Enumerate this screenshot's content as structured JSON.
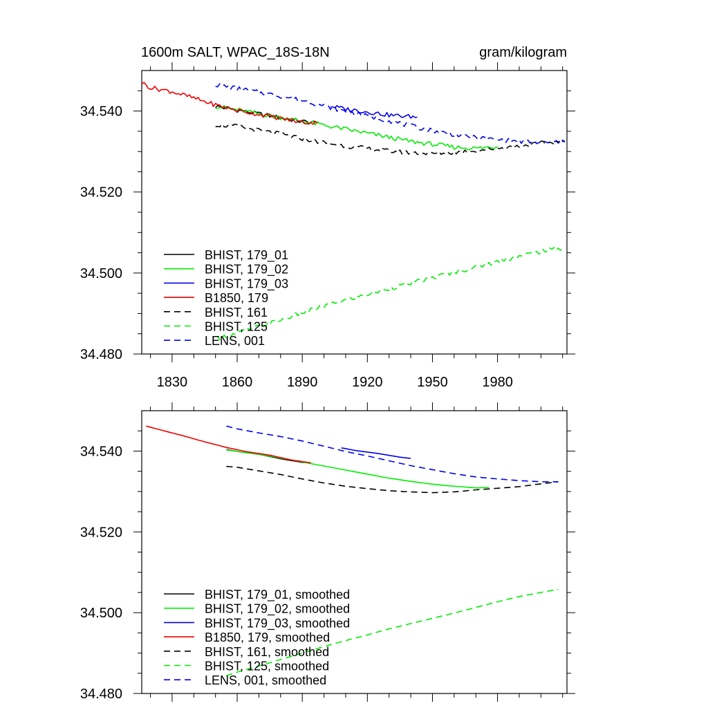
{
  "header": {
    "title_left": "1600m SALT, WPAC_18S-18N",
    "title_right": "gram/kilogram"
  },
  "colors": {
    "black": "#000000",
    "green": "#00ee00",
    "blue": "#0000ee",
    "red": "#ee0000"
  },
  "chart_data": [
    {
      "type": "line",
      "xlim": [
        1816,
        2012
      ],
      "ylim": [
        34.48,
        34.55
      ],
      "xticks": [
        "1830",
        "1860",
        "1890",
        "1920",
        "1950",
        "1980"
      ],
      "yticks": [
        "34.480",
        "34.500",
        "34.520",
        "34.540"
      ],
      "legend_position": "lower-left",
      "grid": false,
      "series": [
        {
          "name": "BHIST, 179_01",
          "color": "#000000",
          "dash": "solid",
          "x": [
            1850,
            1860,
            1870,
            1880,
            1890,
            1897
          ],
          "y": [
            34.5412,
            34.5402,
            34.5393,
            34.5383,
            34.5374,
            34.5371
          ]
        },
        {
          "name": "BHIST, 179_02",
          "color": "#00ee00",
          "dash": "solid",
          "x": [
            1850,
            1860,
            1870,
            1880,
            1890,
            1900,
            1910,
            1920,
            1930,
            1940,
            1950,
            1960,
            1970,
            1980
          ],
          "y": [
            34.5412,
            34.5403,
            34.5393,
            34.5384,
            34.5375,
            34.5365,
            34.5355,
            34.5345,
            34.5335,
            34.5325,
            34.5318,
            34.5311,
            34.5308,
            34.5312
          ]
        },
        {
          "name": "BHIST, 179_03",
          "color": "#0000ee",
          "dash": "solid",
          "x": [
            1903,
            1910,
            1920,
            1930,
            1943
          ],
          "y": [
            34.5412,
            34.5405,
            34.5398,
            34.539,
            34.5385
          ]
        },
        {
          "name": "B1850, 179",
          "color": "#ee0000",
          "dash": "solid",
          "x": [
            1816,
            1820,
            1830,
            1840,
            1850,
            1860,
            1870,
            1880,
            1890,
            1897
          ],
          "y": [
            34.547,
            34.5458,
            34.5448,
            34.5432,
            34.5415,
            34.5402,
            34.5392,
            34.5382,
            34.5372,
            34.537
          ]
        },
        {
          "name": "BHIST, 161",
          "color": "#000000",
          "dash": "dashed",
          "x": [
            1850,
            1860,
            1870,
            1880,
            1890,
            1900,
            1910,
            1920,
            1930,
            1940,
            1950,
            1960,
            1970,
            1980,
            1990,
            2000,
            2011
          ],
          "y": [
            34.5366,
            34.5362,
            34.5352,
            34.5343,
            34.5332,
            34.5322,
            34.5314,
            34.5307,
            34.5301,
            34.5297,
            34.5295,
            34.5298,
            34.5303,
            34.5308,
            34.5313,
            34.532,
            34.5326
          ]
        },
        {
          "name": "BHIST, 125",
          "color": "#00ee00",
          "dash": "dashed",
          "x": [
            1850,
            1860,
            1870,
            1880,
            1890,
            1900,
            1910,
            1920,
            1930,
            1940,
            1950,
            1960,
            1970,
            1980,
            1990,
            2000,
            2011
          ],
          "y": [
            34.4838,
            34.4851,
            34.4868,
            34.4884,
            34.4902,
            34.4918,
            34.4933,
            34.4947,
            34.4962,
            34.4975,
            34.4988,
            34.5002,
            34.5015,
            34.5028,
            34.5042,
            34.5053,
            34.5063
          ]
        },
        {
          "name": "LENS, 001",
          "color": "#0000ee",
          "dash": "dashed",
          "x": [
            1850,
            1860,
            1870,
            1880,
            1890,
            1900,
            1910,
            1920,
            1930,
            1940,
            1950,
            1960,
            1970,
            1980,
            1990,
            2000,
            2011
          ],
          "y": [
            34.5465,
            34.5456,
            34.5446,
            34.5437,
            34.5426,
            34.5413,
            34.5399,
            34.5388,
            34.5376,
            34.5363,
            34.5352,
            34.5342,
            34.5334,
            34.5329,
            34.5325,
            34.5322,
            34.5323
          ]
        }
      ]
    },
    {
      "type": "line",
      "xlim": [
        1816,
        2012
      ],
      "ylim": [
        34.48,
        34.55
      ],
      "legend_position": "lower-left",
      "grid": false,
      "yticks": [
        "34.480",
        "34.500",
        "34.520",
        "34.540"
      ],
      "series": [
        {
          "name": "BHIST, 179_01, smoothed",
          "color": "#000000",
          "dash": "solid",
          "x": [
            1855,
            1860,
            1870,
            1880,
            1890,
            1894
          ],
          "y": [
            34.5404,
            34.5399,
            34.5392,
            34.5381,
            34.5372,
            34.5371
          ]
        },
        {
          "name": "BHIST, 179_02, smoothed",
          "color": "#00ee00",
          "dash": "solid",
          "x": [
            1855,
            1860,
            1870,
            1880,
            1890,
            1900,
            1910,
            1920,
            1930,
            1940,
            1950,
            1960,
            1970,
            1976
          ],
          "y": [
            34.5403,
            34.5399,
            34.5392,
            34.5383,
            34.5373,
            34.5363,
            34.5353,
            34.5343,
            34.5333,
            34.5325,
            34.5318,
            34.5313,
            34.5309,
            34.531
          ]
        },
        {
          "name": "BHIST, 179_03, smoothed",
          "color": "#0000ee",
          "dash": "solid",
          "x": [
            1908,
            1915,
            1925,
            1935,
            1940
          ],
          "y": [
            34.5408,
            34.5401,
            34.5394,
            34.5385,
            34.5382
          ]
        },
        {
          "name": "B1850, 179, smoothed",
          "color": "#ee0000",
          "dash": "solid",
          "x": [
            1818,
            1825,
            1835,
            1845,
            1855,
            1865,
            1875,
            1885,
            1894
          ],
          "y": [
            34.5462,
            34.5452,
            34.5438,
            34.5423,
            34.5409,
            34.5398,
            34.539,
            34.5378,
            34.5371
          ]
        },
        {
          "name": "BHIST, 161, smoothed",
          "color": "#000000",
          "dash": "dashed",
          "x": [
            1855,
            1860,
            1870,
            1880,
            1890,
            1900,
            1910,
            1920,
            1930,
            1940,
            1950,
            1960,
            1970,
            1980,
            1990,
            2000,
            2008
          ],
          "y": [
            34.5362,
            34.536,
            34.5351,
            34.5342,
            34.5331,
            34.5321,
            34.5313,
            34.5307,
            34.5302,
            34.5299,
            34.5297,
            34.5299,
            34.5304,
            34.5308,
            34.5312,
            34.5319,
            34.5324
          ]
        },
        {
          "name": "BHIST, 125, smoothed",
          "color": "#00ee00",
          "dash": "dashed",
          "x": [
            1855,
            1860,
            1870,
            1880,
            1890,
            1900,
            1910,
            1920,
            1930,
            1940,
            1950,
            1960,
            1970,
            1980,
            1990,
            2000,
            2008
          ],
          "y": [
            34.4844,
            34.4853,
            34.4868,
            34.4884,
            34.49,
            34.4916,
            34.4931,
            34.4945,
            34.496,
            34.4973,
            34.4986,
            34.4999,
            34.5013,
            34.5027,
            34.504,
            34.505,
            34.5058
          ]
        },
        {
          "name": "LENS, 001, smoothed",
          "color": "#0000ee",
          "dash": "dashed",
          "x": [
            1855,
            1860,
            1870,
            1880,
            1890,
            1900,
            1910,
            1920,
            1930,
            1940,
            1950,
            1960,
            1970,
            1980,
            1990,
            2000,
            2008
          ],
          "y": [
            34.5462,
            34.5455,
            34.5445,
            34.5436,
            34.5425,
            34.5412,
            34.5399,
            34.5388,
            34.5376,
            34.5364,
            34.5354,
            34.5344,
            34.5336,
            34.5331,
            34.5327,
            34.5324,
            34.5324
          ]
        }
      ]
    }
  ]
}
